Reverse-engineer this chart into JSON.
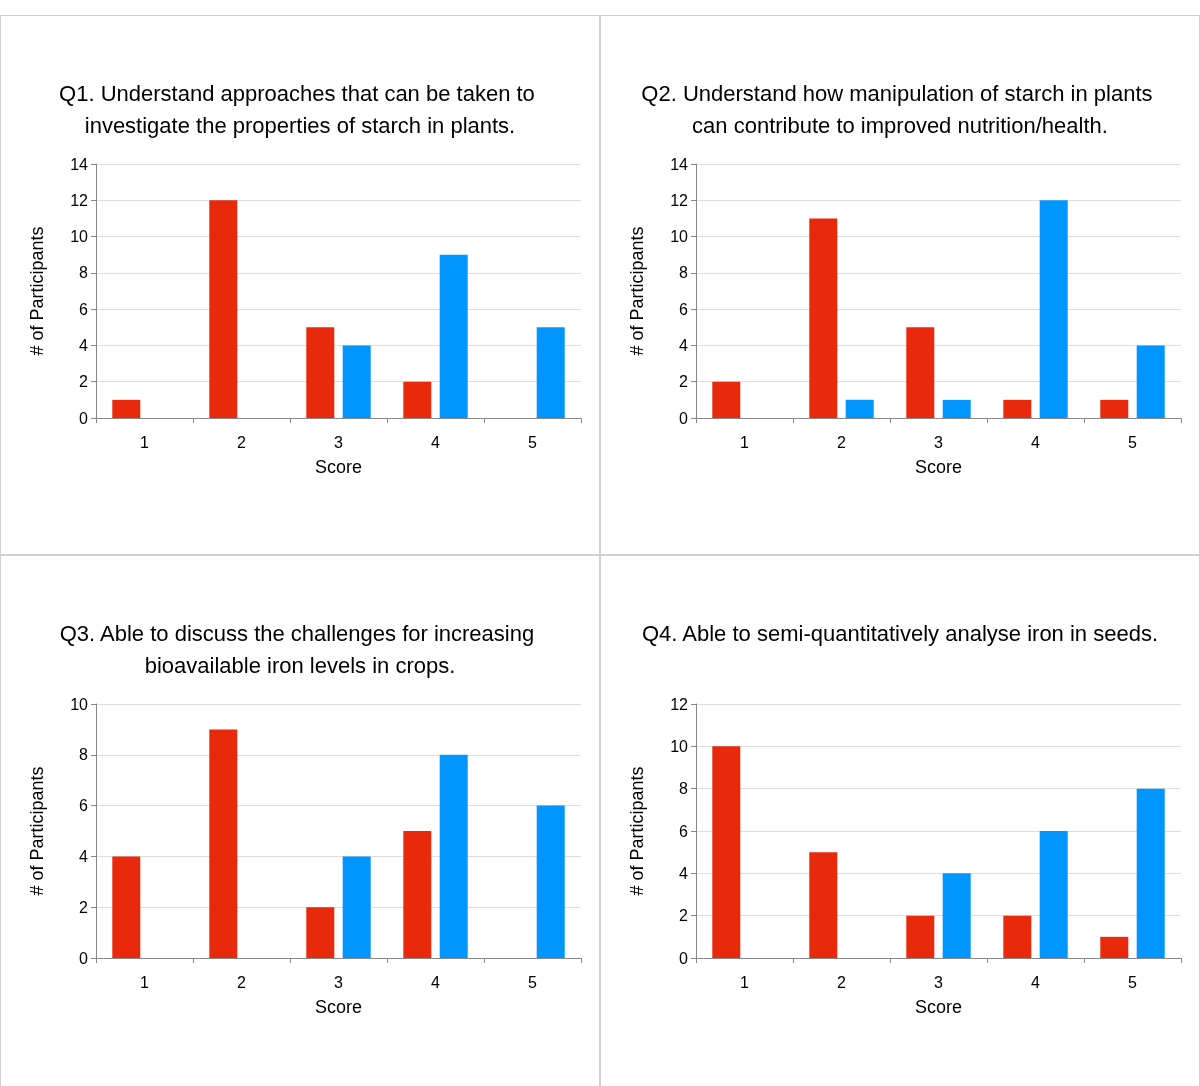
{
  "chart_data": [
    {
      "type": "bar",
      "title": "Q1. Understand approaches that can be taken to investigate the properties of starch in plants.",
      "xlabel": "Score",
      "ylabel": "# of Participants",
      "categories": [
        "1",
        "2",
        "3",
        "4",
        "5"
      ],
      "series": [
        {
          "color": "#e8290b",
          "values": [
            1,
            12,
            5,
            2,
            0
          ]
        },
        {
          "color": "#0096ff",
          "values": [
            0,
            0,
            4,
            9,
            5
          ]
        }
      ],
      "ylim": [
        0,
        14
      ],
      "yticks": [
        0,
        2,
        4,
        6,
        8,
        10,
        12,
        14
      ],
      "grid": "y"
    },
    {
      "type": "bar",
      "title": "Q2. Understand how manipulation of starch in plants can contribute to improved nutrition/health.",
      "xlabel": "Score",
      "ylabel": "# of Participants",
      "categories": [
        "1",
        "2",
        "3",
        "4",
        "5"
      ],
      "series": [
        {
          "color": "#e8290b",
          "values": [
            2,
            11,
            5,
            1,
            1
          ]
        },
        {
          "color": "#0096ff",
          "values": [
            0,
            1,
            1,
            12,
            4
          ]
        }
      ],
      "ylim": [
        0,
        14
      ],
      "yticks": [
        0,
        2,
        4,
        6,
        8,
        10,
        12,
        14
      ],
      "grid": "y"
    },
    {
      "type": "bar",
      "title": "Q3. Able to discuss the challenges for increasing bioavailable iron levels in crops.",
      "xlabel": "Score",
      "ylabel": "# of Participants",
      "categories": [
        "1",
        "2",
        "3",
        "4",
        "5"
      ],
      "series": [
        {
          "color": "#e8290b",
          "values": [
            4,
            9,
            2,
            5,
            0
          ]
        },
        {
          "color": "#0096ff",
          "values": [
            0,
            0,
            4,
            8,
            6
          ]
        }
      ],
      "ylim": [
        0,
        10
      ],
      "yticks": [
        0,
        2,
        4,
        6,
        8,
        10
      ],
      "grid": "y"
    },
    {
      "type": "bar",
      "title": "Q4. Able to semi-quantitatively analyse iron in seeds.",
      "xlabel": "Score",
      "ylabel": "# of Participants",
      "categories": [
        "1",
        "2",
        "3",
        "4",
        "5"
      ],
      "series": [
        {
          "color": "#e8290b",
          "values": [
            10,
            5,
            2,
            2,
            1
          ]
        },
        {
          "color": "#0096ff",
          "values": [
            0,
            0,
            4,
            6,
            8
          ]
        }
      ],
      "ylim": [
        0,
        12
      ],
      "yticks": [
        0,
        2,
        4,
        6,
        8,
        10,
        12
      ],
      "grid": "y"
    }
  ]
}
